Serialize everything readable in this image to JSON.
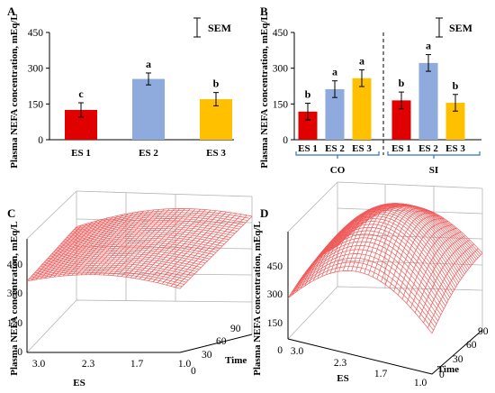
{
  "ylabel": "Plasma NEFA concentration, mEq/L",
  "sem_label": "SEM",
  "chart_data": [
    {
      "panel": "A",
      "type": "bar",
      "categories": [
        "ES 1",
        "ES 2",
        "ES 3"
      ],
      "values": [
        125,
        255,
        170
      ],
      "errors": [
        30,
        25,
        28
      ],
      "letters": [
        "c",
        "a",
        "b"
      ],
      "colors": [
        "#e00000",
        "#8faadc",
        "#ffc000"
      ],
      "yticks": [
        0,
        150,
        300,
        450
      ],
      "ylim": [
        0,
        450
      ]
    },
    {
      "panel": "B",
      "type": "bar",
      "categories": [
        "ES 1",
        "ES 2",
        "ES 3",
        "ES 1",
        "ES 2",
        "ES 3"
      ],
      "groups": [
        {
          "name": "CO",
          "indices": [
            0,
            1,
            2
          ]
        },
        {
          "name": "SI",
          "indices": [
            3,
            4,
            5
          ]
        }
      ],
      "values": [
        118,
        212,
        258,
        165,
        322,
        155
      ],
      "errors": [
        35,
        35,
        35,
        35,
        35,
        35
      ],
      "letters": [
        "b",
        "a",
        "a",
        "b",
        "a",
        "b"
      ],
      "colors": [
        "#e00000",
        "#8faadc",
        "#ffc000",
        "#e00000",
        "#8faadc",
        "#ffc000"
      ],
      "yticks": [
        0,
        150,
        300,
        450
      ],
      "ylim": [
        0,
        450
      ]
    },
    {
      "panel": "C",
      "type": "surface",
      "xlabel": "ES",
      "ylabel": "Time",
      "x_ticks": [
        "3.0",
        "2.3",
        "1.7",
        "1.0"
      ],
      "y_ticks": [
        "0",
        "30",
        "60",
        "90"
      ],
      "z_ticks": [
        "0",
        "150",
        "300",
        "450"
      ],
      "zlim": [
        0,
        450
      ]
    },
    {
      "panel": "D",
      "type": "surface",
      "xlabel": "ES",
      "ylabel": "Time",
      "x_ticks": [
        "3.0",
        "2.3",
        "1.7",
        "1.0"
      ],
      "y_ticks": [
        "0",
        "30",
        "60",
        "90"
      ],
      "z_ticks": [
        "0",
        "150",
        "300",
        "450"
      ],
      "zlim": [
        0,
        450
      ]
    }
  ]
}
